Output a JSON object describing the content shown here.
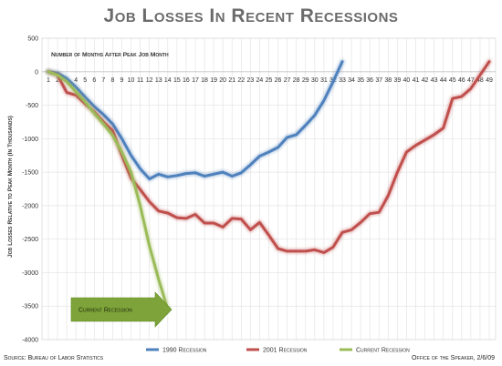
{
  "page": {
    "title": "Job Losses In Recent Recessions",
    "source": "Source: Bureau of Labor Statistics",
    "credit": "Office of the Speaker, 2/6/09"
  },
  "chart_data": {
    "type": "line",
    "title": "Job Losses In Recent Recessions",
    "xlabel": "Number of Months After Peak Job Month",
    "ylabel": "Job Losses Relative to Peak Month (In Thousands)",
    "xlim": [
      1,
      49
    ],
    "ylim": [
      -4000,
      500
    ],
    "yticks": [
      500,
      0,
      -500,
      -1000,
      -1500,
      -2000,
      -2500,
      -3000,
      -3500,
      -4000
    ],
    "xticks": [
      1,
      2,
      3,
      4,
      5,
      6,
      7,
      8,
      9,
      10,
      11,
      12,
      13,
      14,
      15,
      16,
      17,
      18,
      19,
      20,
      21,
      22,
      23,
      24,
      25,
      26,
      27,
      28,
      29,
      30,
      31,
      32,
      33,
      34,
      35,
      36,
      37,
      38,
      39,
      40,
      41,
      42,
      43,
      44,
      45,
      46,
      47,
      48,
      49
    ],
    "grid": true,
    "legend_position": "bottom",
    "annotation": "Current Recession",
    "series": [
      {
        "name": "1990 Recession",
        "color": "#4f81bd",
        "x": [
          1,
          2,
          3,
          4,
          5,
          6,
          7,
          8,
          9,
          10,
          11,
          12,
          13,
          14,
          15,
          16,
          17,
          18,
          19,
          20,
          21,
          22,
          23,
          24,
          25,
          26,
          27,
          28,
          29,
          30,
          31,
          32,
          33
        ],
        "values": [
          0,
          -20,
          -100,
          -230,
          -380,
          -520,
          -640,
          -780,
          -1000,
          -1250,
          -1450,
          -1600,
          -1530,
          -1570,
          -1550,
          -1520,
          -1510,
          -1560,
          -1530,
          -1500,
          -1560,
          -1510,
          -1390,
          -1260,
          -1200,
          -1130,
          -980,
          -940,
          -800,
          -650,
          -430,
          -150,
          150
        ]
      },
      {
        "name": "2001 Recession",
        "color": "#c0504d",
        "x": [
          1,
          2,
          3,
          4,
          5,
          6,
          7,
          8,
          9,
          10,
          11,
          12,
          13,
          14,
          15,
          16,
          17,
          18,
          19,
          20,
          21,
          22,
          23,
          24,
          25,
          26,
          27,
          28,
          29,
          30,
          31,
          32,
          33,
          34,
          35,
          36,
          37,
          38,
          39,
          40,
          41,
          42,
          43,
          44,
          45,
          46,
          47,
          48,
          49
        ],
        "values": [
          0,
          -50,
          -310,
          -350,
          -480,
          -600,
          -750,
          -880,
          -1250,
          -1590,
          -1760,
          -1940,
          -2080,
          -2110,
          -2180,
          -2190,
          -2130,
          -2260,
          -2260,
          -2320,
          -2190,
          -2200,
          -2360,
          -2250,
          -2440,
          -2640,
          -2680,
          -2680,
          -2680,
          -2660,
          -2700,
          -2620,
          -2400,
          -2360,
          -2250,
          -2120,
          -2100,
          -1850,
          -1500,
          -1200,
          -1100,
          -1020,
          -940,
          -840,
          -400,
          -370,
          -250,
          -50,
          150
        ]
      },
      {
        "name": "Current Recession",
        "color": "#9bbb59",
        "x": [
          1,
          2,
          3,
          4,
          5,
          6,
          7,
          8,
          9,
          10,
          11,
          12,
          13,
          14
        ],
        "values": [
          0,
          -50,
          -150,
          -300,
          -450,
          -620,
          -780,
          -950,
          -1200,
          -1500,
          -2000,
          -2600,
          -3100,
          -3550
        ]
      }
    ]
  }
}
